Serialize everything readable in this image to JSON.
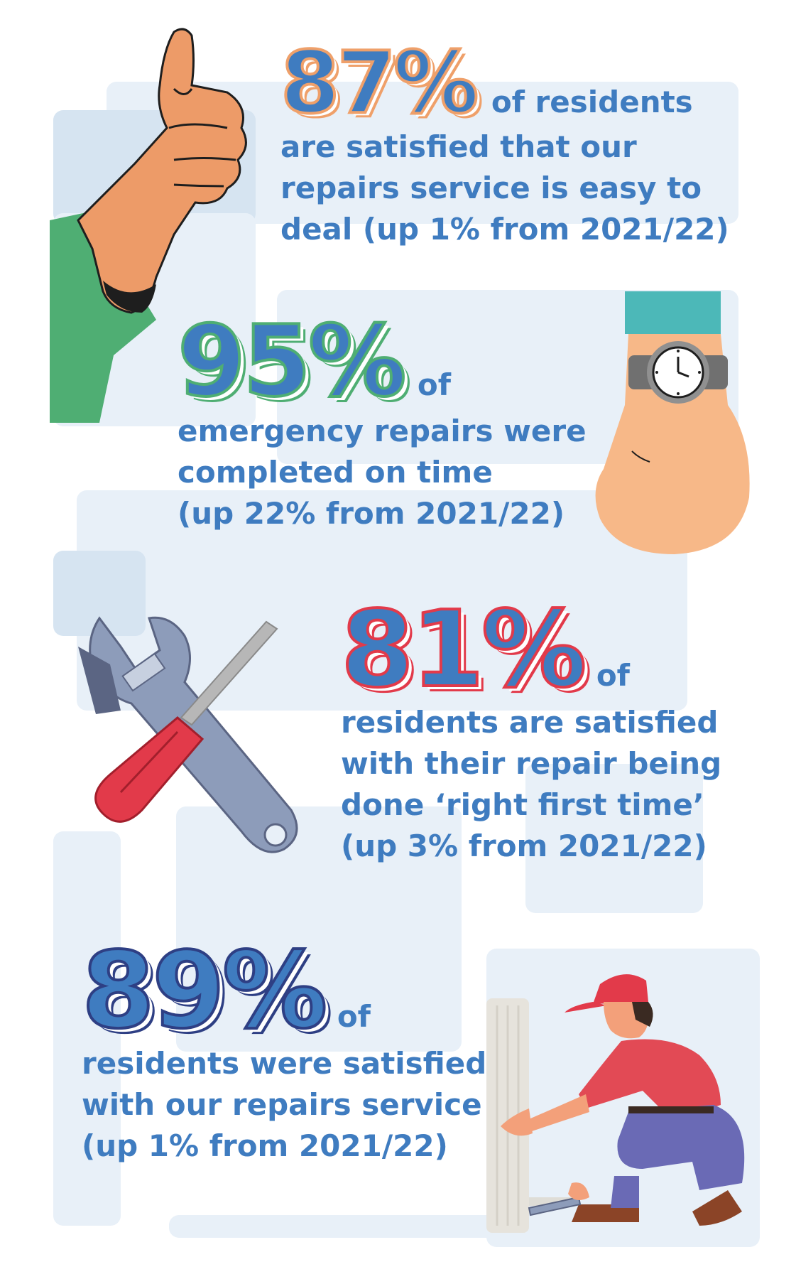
{
  "stats": [
    {
      "percent": "87%",
      "lead": "of residents",
      "lines": [
        "are satisfied that our",
        "repairs service is easy to",
        "deal (up 1% from 2021/22)"
      ],
      "accent": "#efa06a",
      "illustration": "thumbs-up-hand"
    },
    {
      "percent": "95%",
      "lead": "of",
      "lines": [
        "emergency repairs were",
        "completed on time",
        "(up 22% from 2021/22)"
      ],
      "accent": "#4fae73",
      "illustration": "wrist-watch"
    },
    {
      "percent": "81%",
      "lead": "of",
      "lines": [
        "residents are satisfied",
        "with their repair being",
        "done ‘right first time’",
        "(up 3% from 2021/22)"
      ],
      "accent": "#e23a4a",
      "illustration": "wrench-and-screwdriver"
    },
    {
      "percent": "89%",
      "lead": "of",
      "lines": [
        "residents were satisfied",
        "with our repairs service",
        "(up 1% from 2021/22)"
      ],
      "accent": "#2e3f84",
      "illustration": "repairman-fixing-radiator"
    }
  ],
  "colors": {
    "text_blue": "#3f7cc0",
    "panel": "#e8f0f8",
    "panel_dark": "#d6e4f1"
  }
}
